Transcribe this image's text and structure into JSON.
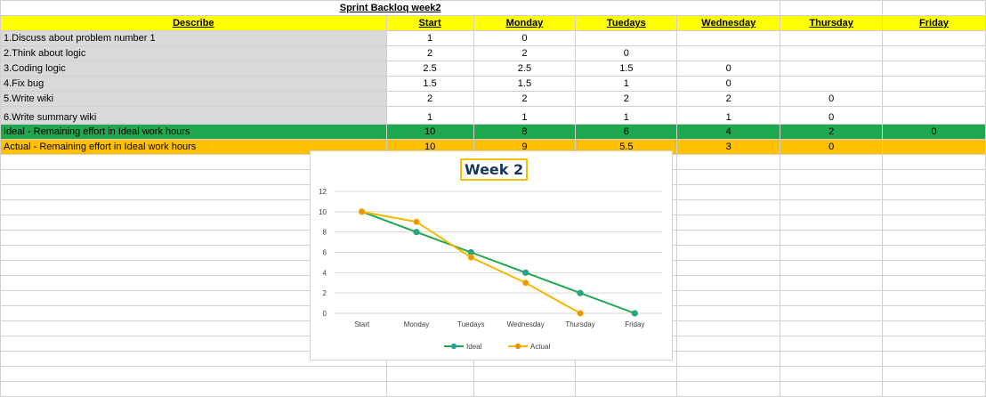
{
  "sheet": {
    "title": "Sprint Backloq week2",
    "headers": [
      "Describe",
      "Start",
      "Monday",
      "Tuedays",
      "Wednesday",
      "Thursday",
      "Friday"
    ],
    "tasks": [
      {
        "label": "1.Discuss about problem number 1",
        "values": [
          "1",
          "0",
          "",
          "",
          "",
          ""
        ]
      },
      {
        "label": "2.Think about logic",
        "values": [
          "2",
          "2",
          "0",
          "",
          "",
          ""
        ]
      },
      {
        "label": "3.Coding logic",
        "values": [
          "2.5",
          "2.5",
          "1.5",
          "0",
          "",
          ""
        ]
      },
      {
        "label": "4.Fix bug",
        "values": [
          "1.5",
          "1.5",
          "1",
          "0",
          "",
          ""
        ]
      },
      {
        "label": "5.Write wiki",
        "values": [
          "2",
          "2",
          "2",
          "2",
          "0",
          ""
        ]
      },
      {
        "label": "6.Write summary wiki",
        "values": [
          "1",
          "1",
          "1",
          "1",
          "0",
          ""
        ]
      }
    ],
    "ideal": {
      "label": "Ideal - Remaining effort in Ideal work hours",
      "values": [
        "10",
        "8",
        "6",
        "4",
        "2",
        "0"
      ]
    },
    "actual": {
      "label": "Actual - Remaining effort in Ideal work hours",
      "values": [
        "10",
        "9",
        "5.5",
        "3",
        "0",
        ""
      ]
    },
    "colors": {
      "header": "#ffff00",
      "task_label": "#d9d9d9",
      "ideal_row": "#1fa84f",
      "actual_row": "#ffc000"
    }
  },
  "chart_data": {
    "type": "line",
    "title": "Week 2",
    "categories": [
      "Start",
      "Monday",
      "Tuedays",
      "Wednesday",
      "Thursday",
      "Friday"
    ],
    "series": [
      {
        "name": "Ideal",
        "values": [
          10,
          8,
          6,
          4,
          2,
          0
        ],
        "color": "#1fa84f",
        "marker_color": "#2aa198"
      },
      {
        "name": "Actual",
        "values": [
          10,
          9,
          5.5,
          3,
          0,
          null
        ],
        "color": "#f5b800",
        "marker_color": "#f39200"
      }
    ],
    "ylim": [
      0,
      12
    ],
    "yticks": [
      0,
      2,
      4,
      6,
      8,
      10,
      12
    ],
    "grid": true,
    "legend": "bottom"
  }
}
